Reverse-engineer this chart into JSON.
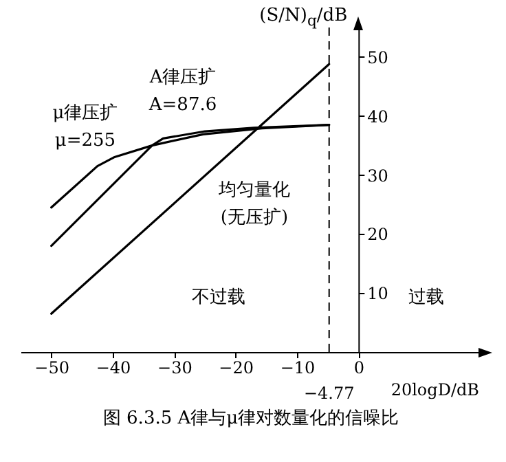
{
  "chart_data": {
    "type": "line",
    "title": "图 6.3.5 A律与μ律对数量化的信噪比",
    "xlabel": "20logD/dB",
    "ylabel": "(S/N)$_{q}$/dB",
    "xlim": [
      -55,
      20
    ],
    "ylim": [
      0,
      55
    ],
    "xticks": [
      -50,
      -40,
      -30,
      -20,
      -10,
      0
    ],
    "yticks": [
      10,
      20,
      30,
      40,
      50
    ],
    "series": [
      {
        "name": "μ律压扩\nμ=255",
        "color": "#000000",
        "x": [
          -50,
          -42.5,
          -39.8,
          -33.6,
          -25.3,
          -15.7,
          -4.77
        ],
        "values": [
          24.5,
          31.5,
          33,
          35,
          36.9,
          37.9,
          38.5
        ]
      },
      {
        "name": "A律压扩\nA=87.6",
        "color": "#000000",
        "x": [
          -50,
          -33.6,
          -31.8,
          -25,
          -17,
          -4.77
        ],
        "values": [
          18,
          35,
          36.2,
          37.4,
          38,
          38.5
        ]
      },
      {
        "name": "均匀量化\n(无压扩)",
        "color": "#000000",
        "x": [
          -50,
          -4.77
        ],
        "values": [
          6.5,
          48.8
        ]
      }
    ],
    "ref_lines": [
      {
        "axis": "x",
        "value": -4.77,
        "label": "−4.77",
        "color": "#000000",
        "line_style": "dashed"
      }
    ],
    "annotations": [
      "不过载",
      "过载"
    ],
    "legend": false,
    "grid": false,
    "marker": "none",
    "line_style": "solid"
  }
}
